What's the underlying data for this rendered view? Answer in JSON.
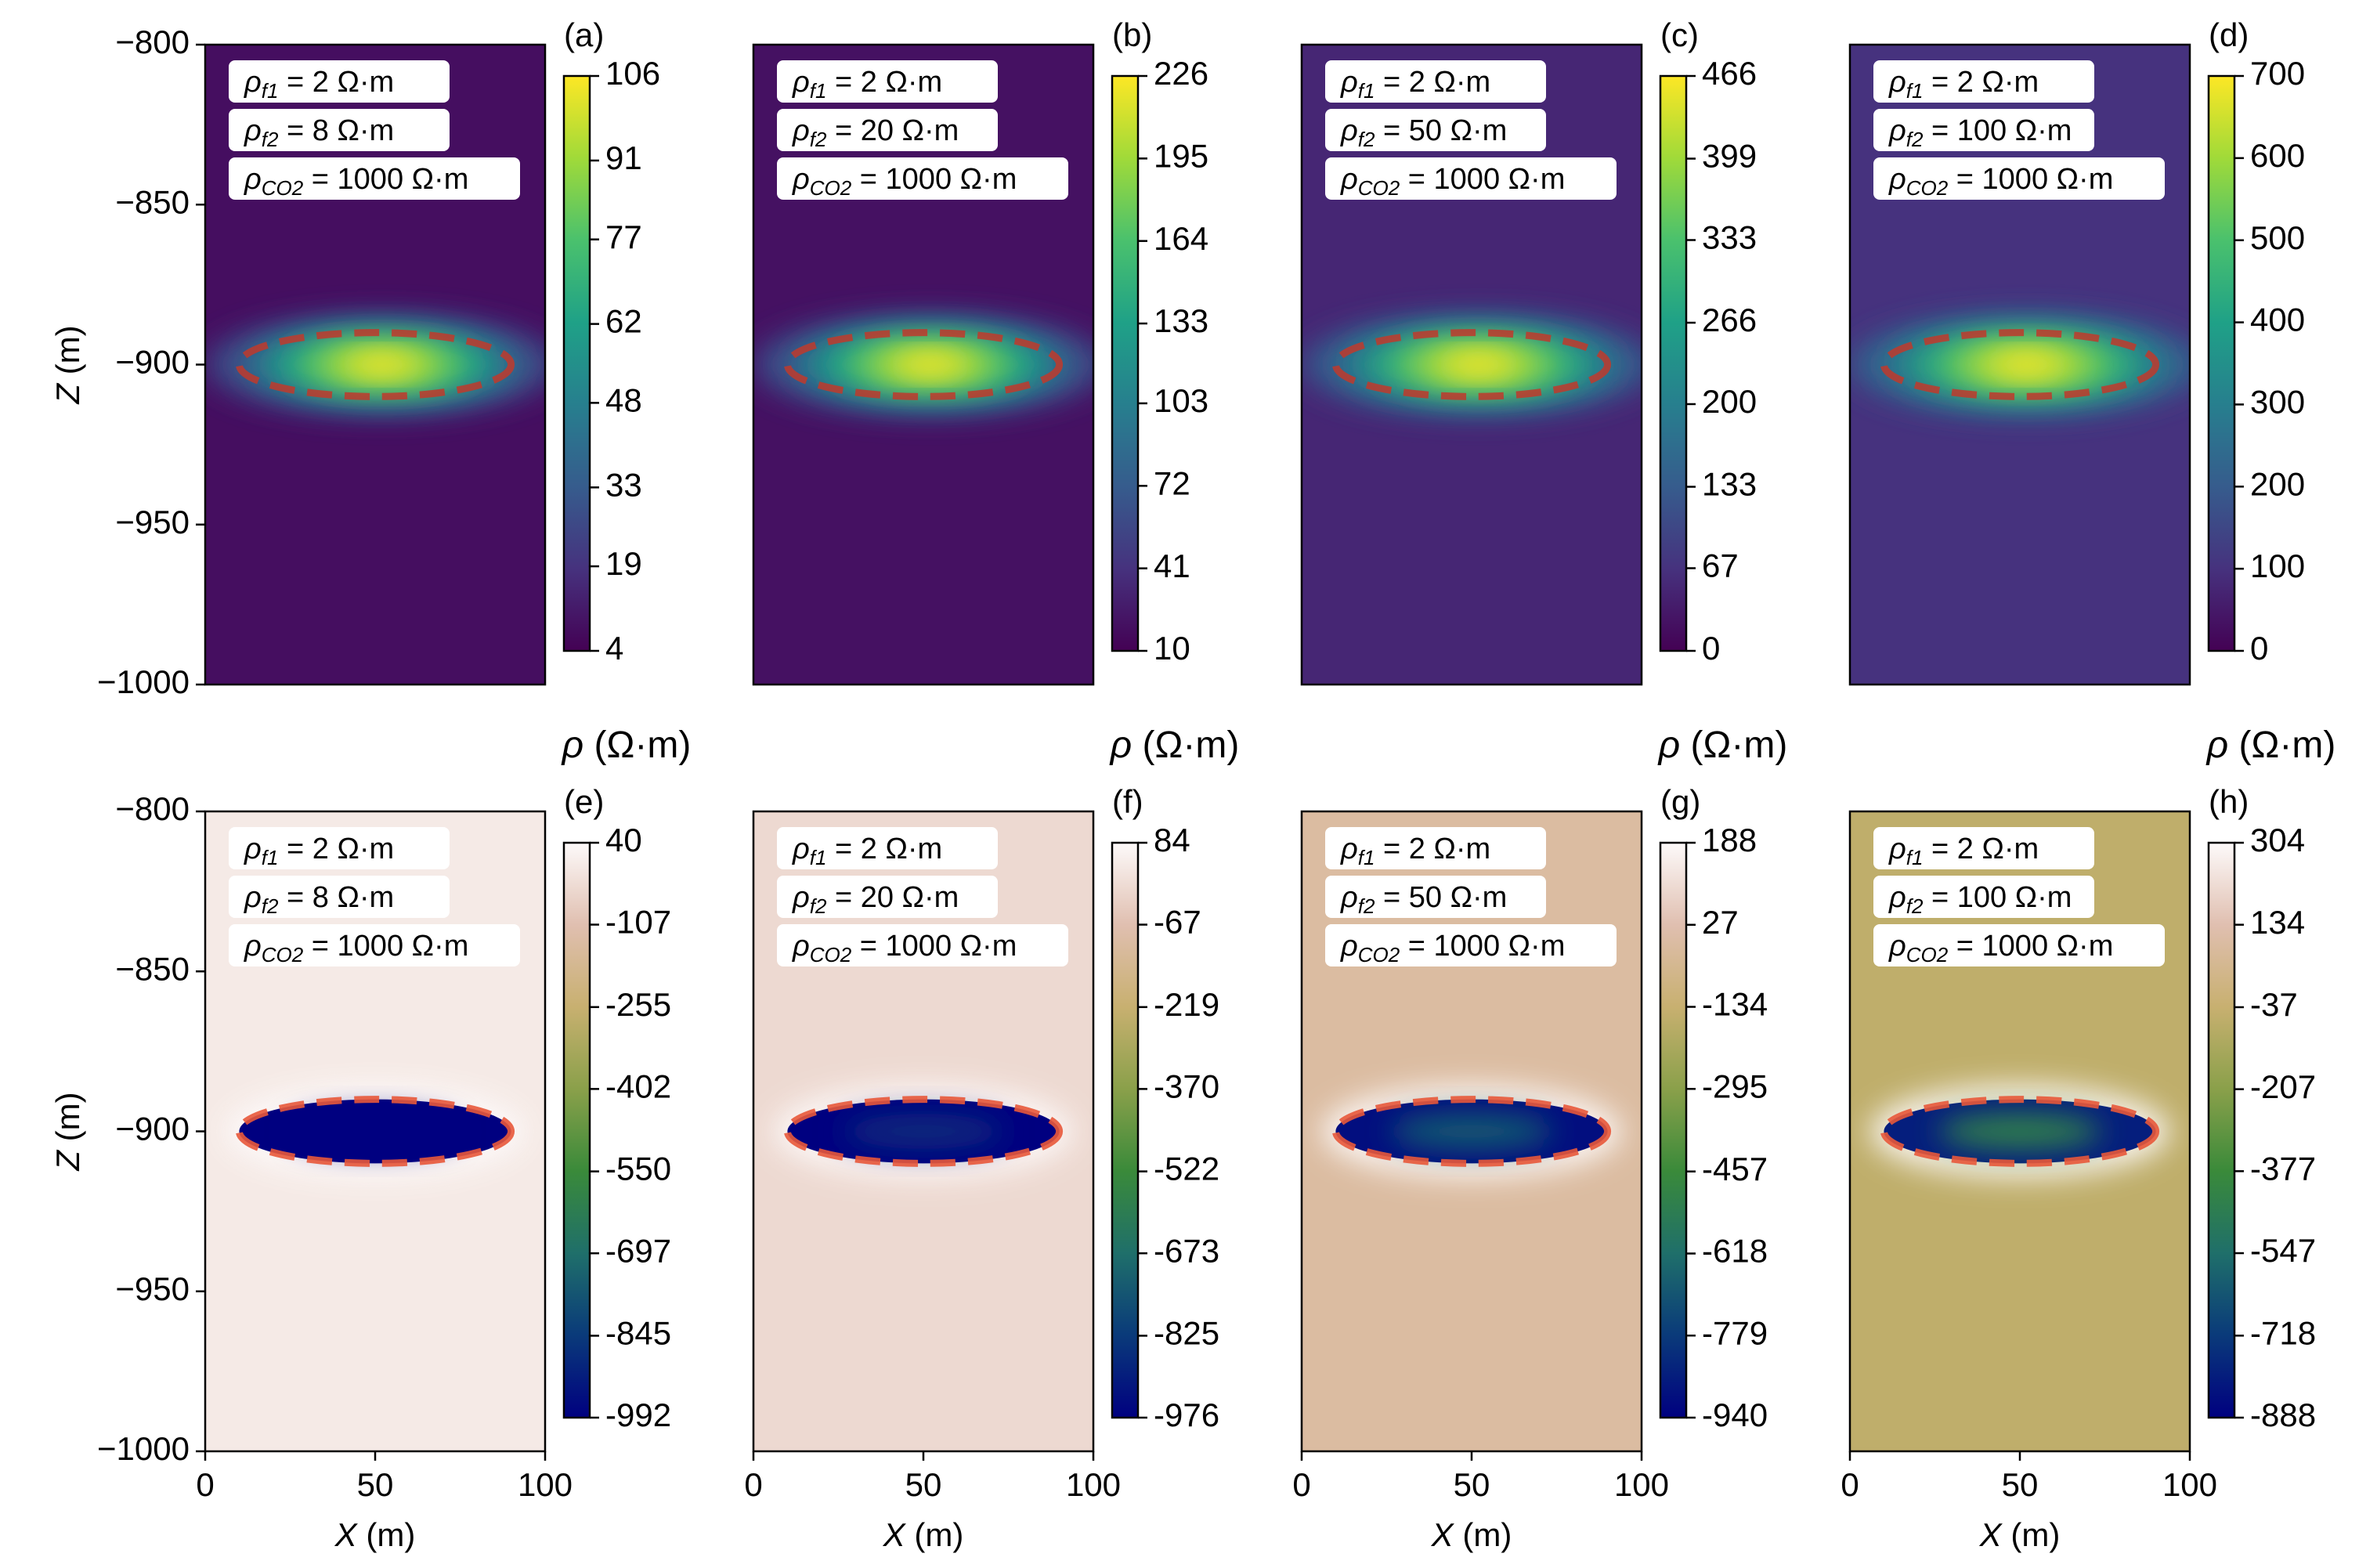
{
  "chart_data": [
    {
      "type": "heatmap",
      "panel_label": "(a)",
      "row": 0,
      "col": 0,
      "colormap": "viridis",
      "colorbar_ticks": [
        "106",
        "91",
        "77",
        "62",
        "48",
        "33",
        "19",
        "4"
      ],
      "colorbar_label": "ρ (Ω·m)",
      "annotations": [
        "ρf1 = 2 Ω·m",
        "ρf2 = 8 Ω·m",
        "ρCO2 = 1000 Ω·m"
      ],
      "xlim": [
        0,
        100
      ],
      "ylim": [
        -1000,
        -800
      ],
      "xticks": [],
      "yticks": [
        "-800",
        "-850",
        "-900",
        "-950",
        "-1000"
      ],
      "xlabel": "",
      "ylabel": "Z (m)",
      "background_value": 8,
      "anomaly_peak": 106,
      "anomaly_center": [
        52,
        -900
      ],
      "ellipse": {
        "cx": 50,
        "cz": -900,
        "rx": 40,
        "rz": 10
      }
    },
    {
      "type": "heatmap",
      "panel_label": "(b)",
      "row": 0,
      "col": 1,
      "colormap": "viridis",
      "colorbar_ticks": [
        "226",
        "195",
        "164",
        "133",
        "103",
        "72",
        "41",
        "10"
      ],
      "colorbar_label": "ρ (Ω·m)",
      "annotations": [
        "ρf1 = 2 Ω·m",
        "ρf2 = 20 Ω·m",
        "ρCO2 = 1000 Ω·m"
      ],
      "xlim": [
        0,
        100
      ],
      "ylim": [
        -1000,
        -800
      ],
      "xticks": [],
      "yticks": [],
      "xlabel": "",
      "ylabel": "",
      "background_value": 20,
      "anomaly_peak": 226,
      "anomaly_center": [
        52,
        -900
      ],
      "ellipse": {
        "cx": 50,
        "cz": -900,
        "rx": 40,
        "rz": 10
      }
    },
    {
      "type": "heatmap",
      "panel_label": "(c)",
      "row": 0,
      "col": 2,
      "colormap": "viridis",
      "colorbar_ticks": [
        "466",
        "399",
        "333",
        "266",
        "200",
        "133",
        "67",
        "0"
      ],
      "colorbar_label": "ρ (Ω·m)",
      "annotations": [
        "ρf1 = 2 Ω·m",
        "ρf2 = 50 Ω·m",
        "ρCO2 = 1000 Ω·m"
      ],
      "xlim": [
        0,
        100
      ],
      "ylim": [
        -1000,
        -800
      ],
      "xticks": [],
      "yticks": [],
      "xlabel": "",
      "ylabel": "",
      "background_value": 50,
      "anomaly_peak": 466,
      "anomaly_center": [
        52,
        -900
      ],
      "ellipse": {
        "cx": 50,
        "cz": -900,
        "rx": 40,
        "rz": 10
      }
    },
    {
      "type": "heatmap",
      "panel_label": "(d)",
      "row": 0,
      "col": 3,
      "colormap": "viridis",
      "colorbar_ticks": [
        "700",
        "600",
        "500",
        "400",
        "300",
        "200",
        "100",
        "0"
      ],
      "colorbar_label": "ρ (Ω·m)",
      "annotations": [
        "ρf1 = 2 Ω·m",
        "ρf2 = 100 Ω·m",
        "ρCO2 = 1000 Ω·m"
      ],
      "xlim": [
        0,
        100
      ],
      "ylim": [
        -1000,
        -800
      ],
      "xticks": [],
      "yticks": [],
      "xlabel": "",
      "ylabel": "",
      "background_value": 100,
      "anomaly_peak": 700,
      "anomaly_center": [
        52,
        -900
      ],
      "ellipse": {
        "cx": 50,
        "cz": -900,
        "rx": 40,
        "rz": 10
      }
    },
    {
      "type": "heatmap",
      "panel_label": "(e)",
      "row": 1,
      "col": 0,
      "colormap": "gist_earth",
      "colorbar_ticks": [
        "40",
        "-107",
        "-255",
        "-402",
        "-550",
        "-697",
        "-845",
        "-992"
      ],
      "colorbar_label": "",
      "annotations": [
        "ρf1 = 2 Ω·m",
        "ρf2 = 8 Ω·m",
        "ρCO2 = 1000 Ω·m"
      ],
      "xlim": [
        0,
        100
      ],
      "ylim": [
        -1000,
        -800
      ],
      "xticks": [
        "0",
        "50",
        "100"
      ],
      "yticks": [
        "-800",
        "-850",
        "-900",
        "-950",
        "-1000"
      ],
      "xlabel": "X (m)",
      "ylabel": "Z (m)",
      "background_value": 0,
      "anomaly_value": -992,
      "ellipse": {
        "cx": 50,
        "cz": -900,
        "rx": 40,
        "rz": 10
      }
    },
    {
      "type": "heatmap",
      "panel_label": "(f)",
      "row": 1,
      "col": 1,
      "colormap": "gist_earth",
      "colorbar_ticks": [
        "84",
        "-67",
        "-219",
        "-370",
        "-522",
        "-673",
        "-825",
        "-976"
      ],
      "colorbar_label": "",
      "annotations": [
        "ρf1 = 2 Ω·m",
        "ρf2 = 20 Ω·m",
        "ρCO2 = 1000 Ω·m"
      ],
      "xlim": [
        0,
        100
      ],
      "ylim": [
        -1000,
        -800
      ],
      "xticks": [
        "0",
        "50",
        "100"
      ],
      "yticks": [],
      "xlabel": "X (m)",
      "ylabel": "",
      "background_value": 0,
      "anomaly_value": -976,
      "ellipse": {
        "cx": 50,
        "cz": -900,
        "rx": 40,
        "rz": 10
      }
    },
    {
      "type": "heatmap",
      "panel_label": "(g)",
      "row": 1,
      "col": 2,
      "colormap": "gist_earth",
      "colorbar_ticks": [
        "188",
        "27",
        "-134",
        "-295",
        "-457",
        "-618",
        "-779",
        "-940"
      ],
      "colorbar_label": "",
      "annotations": [
        "ρf1 = 2 Ω·m",
        "ρf2 = 50 Ω·m",
        "ρCO2 = 1000 Ω·m"
      ],
      "xlim": [
        0,
        100
      ],
      "ylim": [
        -1000,
        -800
      ],
      "xticks": [
        "0",
        "50",
        "100"
      ],
      "yticks": [],
      "xlabel": "X (m)",
      "ylabel": "",
      "background_value": -10,
      "anomaly_value": -900,
      "ellipse": {
        "cx": 50,
        "cz": -900,
        "rx": 40,
        "rz": 10
      }
    },
    {
      "type": "heatmap",
      "panel_label": "(h)",
      "row": 1,
      "col": 3,
      "colormap": "gist_earth",
      "colorbar_ticks": [
        "304",
        "134",
        "-37",
        "-207",
        "-377",
        "-547",
        "-718",
        "-888"
      ],
      "colorbar_label": "",
      "annotations": [
        "ρf1 = 2 Ω·m",
        "ρf2 = 100 Ω·m",
        "ρCO2 = 1000 Ω·m"
      ],
      "xlim": [
        0,
        100
      ],
      "ylim": [
        -1000,
        -800
      ],
      "xticks": [
        "0",
        "50",
        "100"
      ],
      "yticks": [],
      "xlabel": "X (m)",
      "ylabel": "",
      "background_value": -60,
      "anomaly_value": -800,
      "ellipse": {
        "cx": 50,
        "cz": -900,
        "rx": 40,
        "rz": 10
      }
    }
  ],
  "colors": {
    "ellipse_top": "#c0392b",
    "ellipse_bottom": "#e8583a",
    "annotation_box": "#ffffff"
  }
}
